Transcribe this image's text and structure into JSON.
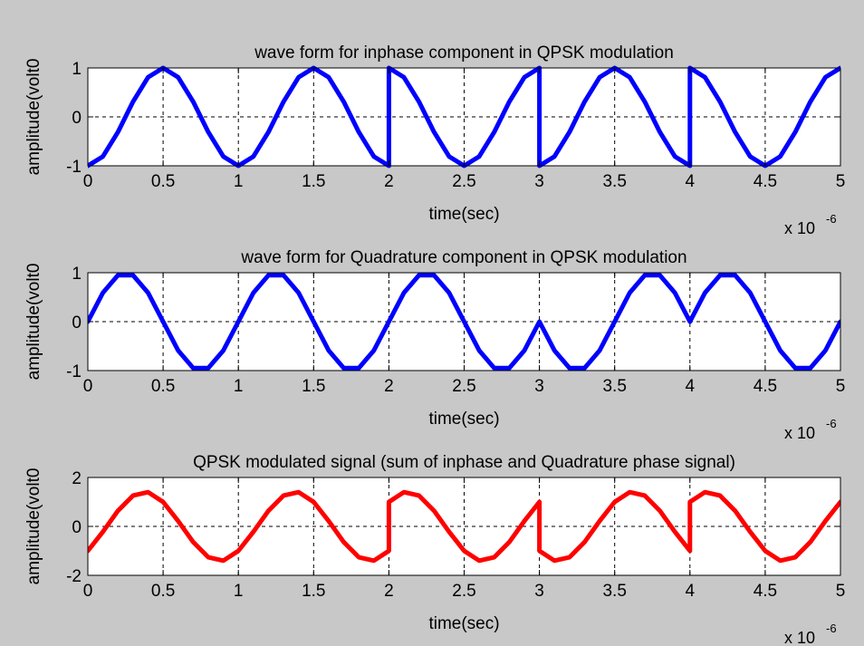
{
  "window": {
    "background": "#c8c8c8"
  },
  "chart_data": [
    {
      "type": "line",
      "title": "wave form for inphase component in QPSK modulation",
      "xlabel": "time(sec)",
      "ylabel": "amplitude(volt0",
      "x_multiplier": "x 10",
      "x_multiplier_exponent": "-6",
      "xlim": [
        0,
        5
      ],
      "ylim": [
        -1,
        1
      ],
      "xticks": [
        "0",
        "0.5",
        "1",
        "1.5",
        "2",
        "2.5",
        "3",
        "3.5",
        "4",
        "4.5",
        "5"
      ],
      "yticks": [
        "-1",
        "0",
        "1"
      ],
      "grid": true,
      "line_color": "#0000ff",
      "series": [
        {
          "x": [
            0,
            0.1,
            0.2,
            0.3,
            0.4,
            0.5,
            0.6,
            0.7,
            0.8,
            0.9,
            1.0,
            1.1,
            1.2,
            1.3,
            1.4,
            1.5,
            1.6,
            1.7,
            1.8,
            1.9,
            2.0,
            2.0,
            2.1,
            2.2,
            2.3,
            2.4,
            2.5,
            2.6,
            2.7,
            2.8,
            2.9,
            3.0,
            3.0,
            3.1,
            3.2,
            3.3,
            3.4,
            3.5,
            3.6,
            3.7,
            3.8,
            3.9,
            4.0,
            4.0,
            4.1,
            4.2,
            4.3,
            4.4,
            4.5,
            4.6,
            4.7,
            4.8,
            4.9,
            5.0
          ],
          "y": [
            -1,
            -0.81,
            -0.31,
            0.31,
            0.81,
            1,
            0.81,
            0.31,
            -0.31,
            -0.81,
            -1,
            -0.81,
            -0.31,
            0.31,
            0.81,
            1,
            0.81,
            0.31,
            -0.31,
            -0.81,
            -1,
            1,
            0.81,
            0.31,
            -0.31,
            -0.81,
            -1,
            -0.81,
            -0.31,
            0.31,
            0.81,
            1,
            -1,
            -0.81,
            -0.31,
            0.31,
            0.81,
            1,
            0.81,
            0.31,
            -0.31,
            -0.81,
            -1,
            1,
            0.81,
            0.31,
            -0.31,
            -0.81,
            -1,
            -0.81,
            -0.31,
            0.31,
            0.81,
            1
          ]
        }
      ]
    },
    {
      "type": "line",
      "title": "wave form for Quadrature component in QPSK modulation",
      "xlabel": "time(sec)",
      "ylabel": "amplitude(volt0",
      "x_multiplier": "x 10",
      "x_multiplier_exponent": "-6",
      "xlim": [
        0,
        5
      ],
      "ylim": [
        -1,
        1
      ],
      "xticks": [
        "0",
        "0.5",
        "1",
        "1.5",
        "2",
        "2.5",
        "3",
        "3.5",
        "4",
        "4.5",
        "5"
      ],
      "yticks": [
        "-1",
        "0",
        "1"
      ],
      "grid": true,
      "line_color": "#0000ff",
      "series": [
        {
          "x": [
            0,
            0.1,
            0.2,
            0.3,
            0.4,
            0.5,
            0.6,
            0.7,
            0.8,
            0.9,
            1.0,
            1.1,
            1.2,
            1.3,
            1.4,
            1.5,
            1.6,
            1.7,
            1.8,
            1.9,
            2.0,
            2.1,
            2.2,
            2.3,
            2.4,
            2.5,
            2.6,
            2.7,
            2.8,
            2.9,
            3.0,
            3.1,
            3.2,
            3.3,
            3.4,
            3.5,
            3.6,
            3.7,
            3.8,
            3.9,
            4.0,
            4.1,
            4.2,
            4.3,
            4.4,
            4.5,
            4.6,
            4.7,
            4.8,
            4.9,
            5.0
          ],
          "y": [
            0,
            0.59,
            0.95,
            0.95,
            0.59,
            0,
            -0.59,
            -0.95,
            -0.95,
            -0.59,
            0,
            0.59,
            0.95,
            0.95,
            0.59,
            0,
            -0.59,
            -0.95,
            -0.95,
            -0.59,
            0,
            0.59,
            0.95,
            0.95,
            0.59,
            0,
            -0.59,
            -0.95,
            -0.95,
            -0.59,
            0,
            -0.59,
            -0.95,
            -0.95,
            -0.59,
            0,
            0.59,
            0.95,
            0.95,
            0.59,
            0,
            0.59,
            0.95,
            0.95,
            0.59,
            0,
            -0.59,
            -0.95,
            -0.95,
            -0.59,
            0
          ]
        }
      ]
    },
    {
      "type": "line",
      "title": "QPSK modulated signal (sum of inphase and Quadrature phase signal)",
      "xlabel": "time(sec)",
      "ylabel": "amplitude(volt0",
      "x_multiplier": "x 10",
      "x_multiplier_exponent": "-6",
      "xlim": [
        0,
        5
      ],
      "ylim": [
        -2,
        2
      ],
      "xticks": [
        "0",
        "0.5",
        "1",
        "1.5",
        "2",
        "2.5",
        "3",
        "3.5",
        "4",
        "4.5",
        "5"
      ],
      "yticks": [
        "-2",
        "0",
        "2"
      ],
      "grid": true,
      "line_color": "#ff0000",
      "series": [
        {
          "x": [
            0,
            0.1,
            0.2,
            0.3,
            0.4,
            0.5,
            0.6,
            0.7,
            0.8,
            0.9,
            1.0,
            1.1,
            1.2,
            1.3,
            1.4,
            1.5,
            1.6,
            1.7,
            1.8,
            1.9,
            2.0,
            2.0,
            2.1,
            2.2,
            2.3,
            2.4,
            2.5,
            2.6,
            2.7,
            2.8,
            2.9,
            3.0,
            3.0,
            3.1,
            3.2,
            3.3,
            3.4,
            3.5,
            3.6,
            3.7,
            3.8,
            3.9,
            4.0,
            4.0,
            4.1,
            4.2,
            4.3,
            4.4,
            4.5,
            4.6,
            4.7,
            4.8,
            4.9,
            5.0
          ],
          "y": [
            -1,
            -0.22,
            0.64,
            1.26,
            1.4,
            1,
            0.22,
            -0.64,
            -1.26,
            -1.4,
            -1,
            -0.22,
            0.64,
            1.26,
            1.4,
            1,
            0.22,
            -0.64,
            -1.26,
            -1.4,
            -1,
            1,
            1.4,
            1.26,
            0.64,
            -0.22,
            -1,
            -1.4,
            -1.26,
            -0.64,
            0.22,
            1,
            -1,
            -1.4,
            -1.26,
            -0.64,
            0.22,
            1,
            1.4,
            1.26,
            0.64,
            -0.22,
            -1,
            1,
            1.4,
            1.26,
            0.64,
            -0.22,
            -1,
            -1.4,
            -1.26,
            -0.64,
            0.22,
            1
          ]
        }
      ]
    }
  ]
}
